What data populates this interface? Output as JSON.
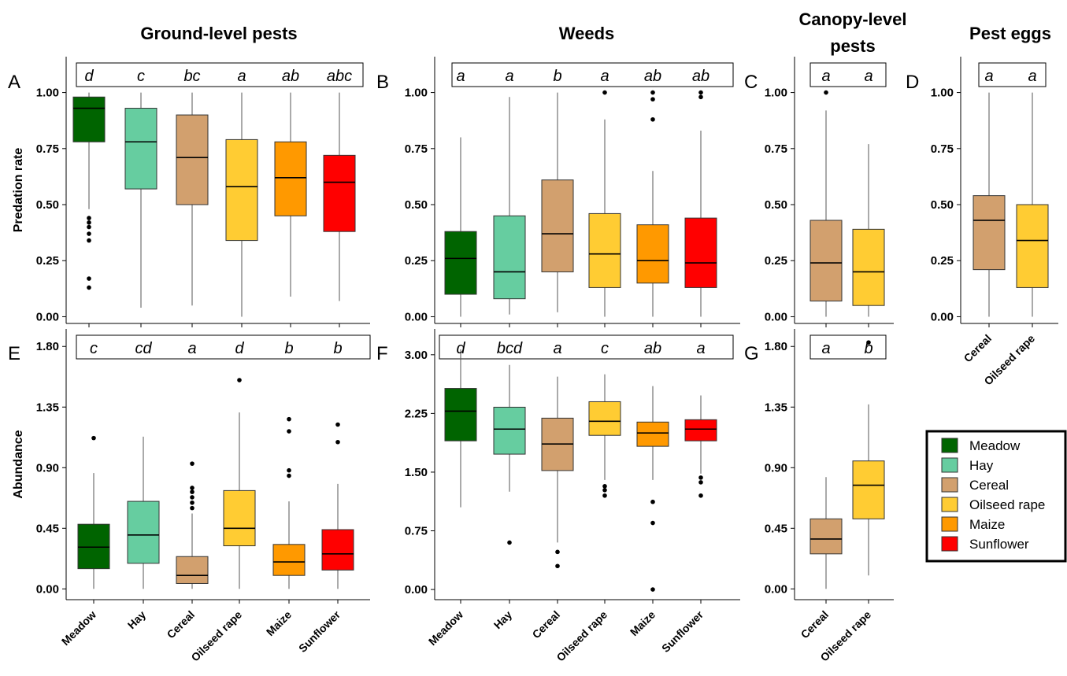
{
  "headers": {
    "ground": "Ground-level pests",
    "weeds": "Weeds",
    "canopy_line1": "Canopy-level",
    "canopy_line2": "pests",
    "eggs": "Pest eggs"
  },
  "legend": {
    "items": [
      {
        "label": "Meadow",
        "color": "#006400"
      },
      {
        "label": "Hay",
        "color": "#66CDA0"
      },
      {
        "label": "Cereal",
        "color": "#D2A06E"
      },
      {
        "label": "Oilseed rape",
        "color": "#FFCC33"
      },
      {
        "label": "Maize",
        "color": "#FF9900"
      },
      {
        "label": "Sunflower",
        "color": "#FF0000"
      }
    ]
  },
  "chart_data": [
    {
      "id": "A",
      "type": "box",
      "ylabel": "Predation rate",
      "categories": [
        "Meadow",
        "Hay",
        "Cereal",
        "Oilseed rape",
        "Maize",
        "Sunflower"
      ],
      "colors": [
        "#006400",
        "#66CDA0",
        "#D2A06E",
        "#FFCC33",
        "#FF9900",
        "#FF0000"
      ],
      "letters": [
        "d",
        "c",
        "bc",
        "a",
        "ab",
        "abc"
      ],
      "ylim": [
        -0.03,
        1.16
      ],
      "yticks": [
        0.0,
        0.25,
        0.5,
        0.75,
        1.0
      ],
      "ytick_labels": [
        "0.00",
        "0.25",
        "0.50",
        "0.75",
        "1.00"
      ],
      "boxes": [
        {
          "min": 0.48,
          "q1": 0.78,
          "med": 0.93,
          "q3": 0.98,
          "max": 1.0,
          "outliers": [
            0.44,
            0.42,
            0.4,
            0.37,
            0.34,
            0.17,
            0.13
          ]
        },
        {
          "min": 0.04,
          "q1": 0.57,
          "med": 0.78,
          "q3": 0.93,
          "max": 1.0,
          "outliers": []
        },
        {
          "min": 0.05,
          "q1": 0.5,
          "med": 0.71,
          "q3": 0.9,
          "max": 1.0,
          "outliers": []
        },
        {
          "min": 0.0,
          "q1": 0.34,
          "med": 0.58,
          "q3": 0.79,
          "max": 1.0,
          "outliers": []
        },
        {
          "min": 0.09,
          "q1": 0.45,
          "med": 0.62,
          "q3": 0.78,
          "max": 1.0,
          "outliers": []
        },
        {
          "min": 0.07,
          "q1": 0.38,
          "med": 0.6,
          "q3": 0.72,
          "max": 1.0,
          "outliers": []
        }
      ]
    },
    {
      "id": "B",
      "type": "box",
      "ylabel": "",
      "categories": [
        "Meadow",
        "Hay",
        "Cereal",
        "Oilseed rape",
        "Maize",
        "Sunflower"
      ],
      "colors": [
        "#006400",
        "#66CDA0",
        "#D2A06E",
        "#FFCC33",
        "#FF9900",
        "#FF0000"
      ],
      "letters": [
        "a",
        "a",
        "b",
        "a",
        "ab",
        "ab"
      ],
      "ylim": [
        -0.03,
        1.16
      ],
      "yticks": [
        0.0,
        0.25,
        0.5,
        0.75,
        1.0
      ],
      "ytick_labels": [
        "0.00",
        "0.25",
        "0.50",
        "0.75",
        "1.00"
      ],
      "boxes": [
        {
          "min": 0.0,
          "q1": 0.1,
          "med": 0.26,
          "q3": 0.38,
          "max": 0.8,
          "outliers": []
        },
        {
          "min": 0.01,
          "q1": 0.08,
          "med": 0.2,
          "q3": 0.45,
          "max": 0.98,
          "outliers": []
        },
        {
          "min": 0.02,
          "q1": 0.2,
          "med": 0.37,
          "q3": 0.61,
          "max": 1.0,
          "outliers": []
        },
        {
          "min": 0.0,
          "q1": 0.13,
          "med": 0.28,
          "q3": 0.46,
          "max": 0.88,
          "outliers": [
            1.0
          ]
        },
        {
          "min": 0.0,
          "q1": 0.15,
          "med": 0.25,
          "q3": 0.41,
          "max": 0.65,
          "outliers": [
            1.0,
            0.97,
            0.88
          ]
        },
        {
          "min": 0.0,
          "q1": 0.13,
          "med": 0.24,
          "q3": 0.44,
          "max": 0.83,
          "outliers": [
            1.0,
            0.98
          ]
        }
      ]
    },
    {
      "id": "C",
      "type": "box",
      "ylabel": "",
      "categories": [
        "Cereal",
        "Oilseed rape"
      ],
      "colors": [
        "#D2A06E",
        "#FFCC33"
      ],
      "letters": [
        "a",
        "a"
      ],
      "ylim": [
        -0.03,
        1.16
      ],
      "yticks": [
        0.0,
        0.25,
        0.5,
        0.75,
        1.0
      ],
      "ytick_labels": [
        "0.00",
        "0.25",
        "0.50",
        "0.75",
        "1.00"
      ],
      "boxes": [
        {
          "min": 0.0,
          "q1": 0.07,
          "med": 0.24,
          "q3": 0.43,
          "max": 0.92,
          "outliers": [
            1.0
          ]
        },
        {
          "min": 0.0,
          "q1": 0.05,
          "med": 0.2,
          "q3": 0.39,
          "max": 0.77,
          "outliers": []
        }
      ]
    },
    {
      "id": "D",
      "type": "box",
      "ylabel": "",
      "categories": [
        "Cereal",
        "Oilseed rape"
      ],
      "colors": [
        "#D2A06E",
        "#FFCC33"
      ],
      "letters": [
        "a",
        "a"
      ],
      "ylim": [
        -0.03,
        1.16
      ],
      "yticks": [
        0.0,
        0.25,
        0.5,
        0.75,
        1.0
      ],
      "ytick_labels": [
        "0.00",
        "0.25",
        "0.50",
        "0.75",
        "1.00"
      ],
      "boxes": [
        {
          "min": 0.0,
          "q1": 0.21,
          "med": 0.43,
          "q3": 0.54,
          "max": 1.0,
          "outliers": []
        },
        {
          "min": 0.0,
          "q1": 0.13,
          "med": 0.34,
          "q3": 0.5,
          "max": 1.0,
          "outliers": []
        }
      ]
    },
    {
      "id": "E",
      "type": "box",
      "ylabel": "Abundance",
      "categories": [
        "Meadow",
        "Hay",
        "Cereal",
        "Oilseed rape",
        "Maize",
        "Sunflower"
      ],
      "colors": [
        "#006400",
        "#66CDA0",
        "#D2A06E",
        "#FFCC33",
        "#FF9900",
        "#FF0000"
      ],
      "letters": [
        "c",
        "cd",
        "a",
        "d",
        "b",
        "b"
      ],
      "ylim": [
        -0.08,
        1.93
      ],
      "yticks": [
        0.0,
        0.45,
        0.9,
        1.35,
        1.8
      ],
      "ytick_labels": [
        "0.00",
        "0.45",
        "0.90",
        "1.35",
        "1.80"
      ],
      "boxes": [
        {
          "min": 0.0,
          "q1": 0.15,
          "med": 0.31,
          "q3": 0.48,
          "max": 0.86,
          "outliers": [
            1.12
          ]
        },
        {
          "min": 0.0,
          "q1": 0.19,
          "med": 0.4,
          "q3": 0.65,
          "max": 1.13,
          "outliers": []
        },
        {
          "min": 0.0,
          "q1": 0.04,
          "med": 0.1,
          "q3": 0.24,
          "max": 0.56,
          "outliers": [
            0.93,
            0.75,
            0.72,
            0.68,
            0.64,
            0.6
          ]
        },
        {
          "min": 0.0,
          "q1": 0.32,
          "med": 0.45,
          "q3": 0.73,
          "max": 1.31,
          "outliers": [
            1.55
          ]
        },
        {
          "min": 0.0,
          "q1": 0.1,
          "med": 0.2,
          "q3": 0.33,
          "max": 0.65,
          "outliers": [
            1.26,
            1.17,
            0.88,
            0.84
          ]
        },
        {
          "min": 0.0,
          "q1": 0.14,
          "med": 0.26,
          "q3": 0.44,
          "max": 0.78,
          "outliers": [
            1.22,
            1.09
          ]
        }
      ]
    },
    {
      "id": "F",
      "type": "box",
      "ylabel": "",
      "categories": [
        "Meadow",
        "Hay",
        "Cereal",
        "Oilseed rape",
        "Maize",
        "Sunflower"
      ],
      "colors": [
        "#006400",
        "#66CDA0",
        "#D2A06E",
        "#FFCC33",
        "#FF9900",
        "#FF0000"
      ],
      "letters": [
        "d",
        "bcd",
        "a",
        "c",
        "ab",
        "a"
      ],
      "ylim": [
        -0.13,
        3.33
      ],
      "yticks": [
        0.0,
        0.75,
        1.5,
        2.25,
        3.0
      ],
      "ytick_labels": [
        "0.00",
        "0.75",
        "1.50",
        "2.25",
        "3.00"
      ],
      "boxes": [
        {
          "min": 1.05,
          "q1": 1.9,
          "med": 2.28,
          "q3": 2.57,
          "max": 3.07,
          "outliers": []
        },
        {
          "min": 1.25,
          "q1": 1.73,
          "med": 2.05,
          "q3": 2.33,
          "max": 2.87,
          "outliers": [
            0.6
          ]
        },
        {
          "min": 0.6,
          "q1": 1.52,
          "med": 1.86,
          "q3": 2.19,
          "max": 2.72,
          "outliers": [
            0.48,
            0.3
          ]
        },
        {
          "min": 1.4,
          "q1": 1.97,
          "med": 2.15,
          "q3": 2.4,
          "max": 2.75,
          "outliers": [
            1.32,
            1.27,
            1.2
          ]
        },
        {
          "min": 1.4,
          "q1": 1.83,
          "med": 2.0,
          "q3": 2.14,
          "max": 2.6,
          "outliers": [
            1.12,
            0.85,
            0.0
          ]
        },
        {
          "min": 1.48,
          "q1": 1.9,
          "med": 2.05,
          "q3": 2.17,
          "max": 2.48,
          "outliers": [
            1.43,
            1.37,
            1.2
          ]
        }
      ]
    },
    {
      "id": "G",
      "type": "box",
      "ylabel": "",
      "categories": [
        "Cereal",
        "Oilseed rape"
      ],
      "colors": [
        "#D2A06E",
        "#FFCC33"
      ],
      "letters": [
        "a",
        "b"
      ],
      "ylim": [
        -0.08,
        1.93
      ],
      "yticks": [
        0.0,
        0.45,
        0.9,
        1.35,
        1.8
      ],
      "ytick_labels": [
        "0.00",
        "0.45",
        "0.90",
        "1.35",
        "1.80"
      ],
      "boxes": [
        {
          "min": 0.0,
          "q1": 0.26,
          "med": 0.37,
          "q3": 0.52,
          "max": 0.83,
          "outliers": []
        },
        {
          "min": 0.1,
          "q1": 0.52,
          "med": 0.77,
          "q3": 0.95,
          "max": 1.37,
          "outliers": [
            1.83
          ]
        }
      ]
    }
  ]
}
